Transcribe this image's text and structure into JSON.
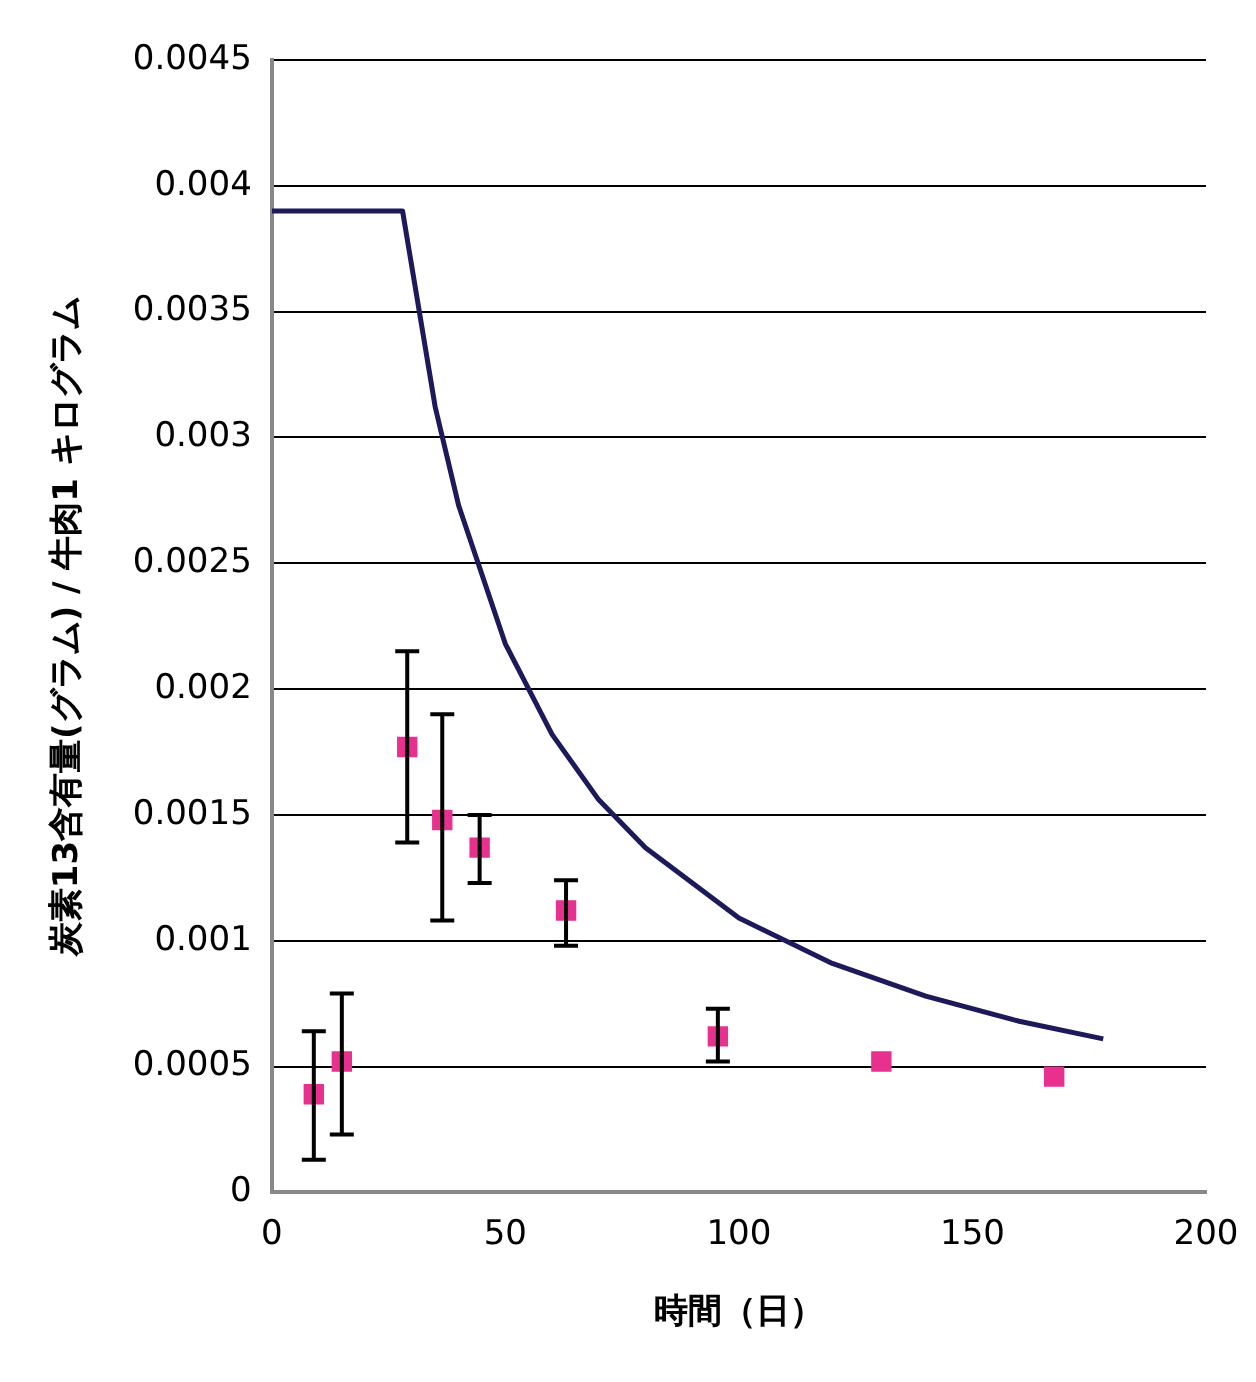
{
  "chart_data": {
    "type": "scatter",
    "xlabel": "時間（日）",
    "ylabel": "炭素13含有量(グラム) / 牛肉1 キログラム",
    "xlim": [
      0,
      200
    ],
    "xticks": [
      0,
      50,
      100,
      150,
      200
    ],
    "ylim": [
      0,
      0.0045
    ],
    "yticks": [
      0,
      0.0005,
      0.001,
      0.0015,
      0.002,
      0.0025,
      0.003,
      0.0035,
      0.004,
      0.0045
    ],
    "grid": "y",
    "legend": false,
    "series": [
      {
        "type": "line",
        "color": "#1c1a5a",
        "marker": "none",
        "x": [
          0,
          28,
          35,
          40,
          50,
          60,
          70,
          80,
          100,
          120,
          140,
          160,
          178
        ],
        "values": [
          0.0039,
          0.0039,
          0.00312,
          0.00273,
          0.00218,
          0.00182,
          0.00156,
          0.00137,
          0.00109,
          0.00091,
          0.00078,
          0.00068,
          0.00061
        ]
      },
      {
        "color": "#e8318f",
        "marker": "square",
        "x": [
          9,
          15,
          29,
          36.5,
          44.5,
          63,
          95.5,
          130.5,
          167.5
        ],
        "values": [
          0.00039,
          0.00052,
          0.00177,
          0.00148,
          0.00137,
          0.00112,
          0.00062,
          0.00052,
          0.00046
        ],
        "errors": [
          [
            0.00013,
            0.00064
          ],
          [
            0.00023,
            0.00079
          ],
          [
            0.00139,
            0.00215
          ],
          [
            0.00108,
            0.0019
          ],
          [
            0.00123,
            0.0015
          ],
          [
            0.00098,
            0.00124
          ],
          [
            0.00052,
            0.00073
          ],
          null,
          null
        ]
      }
    ]
  }
}
